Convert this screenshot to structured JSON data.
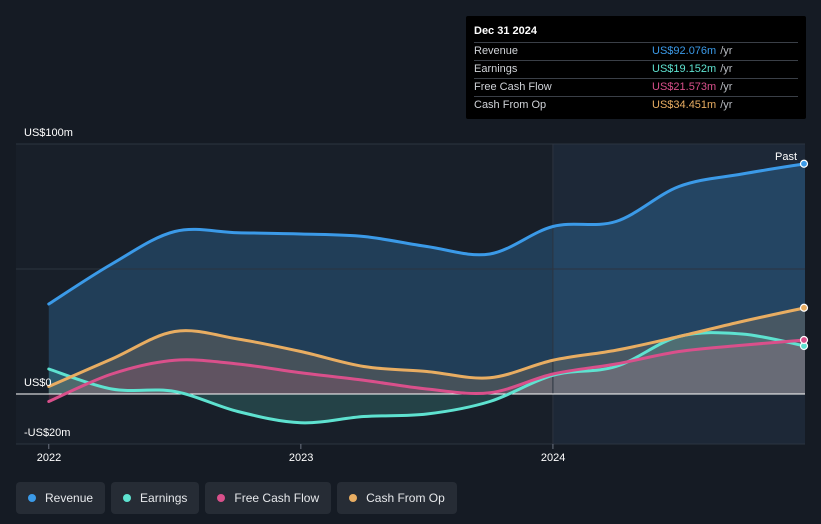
{
  "tooltip": {
    "date": "Dec 31 2024",
    "rows": [
      {
        "label": "Revenue",
        "value": "US$92.076m",
        "unit": "/yr",
        "color": "#3b9ae8"
      },
      {
        "label": "Earnings",
        "value": "US$19.152m",
        "unit": "/yr",
        "color": "#5ee2d0"
      },
      {
        "label": "Free Cash Flow",
        "value": "US$21.573m",
        "unit": "/yr",
        "color": "#d9508b"
      },
      {
        "label": "Cash From Op",
        "value": "US$34.451m",
        "unit": "/yr",
        "color": "#e8ad62"
      }
    ]
  },
  "legend": [
    {
      "label": "Revenue",
      "color": "#3b9ae8"
    },
    {
      "label": "Earnings",
      "color": "#5ee2d0"
    },
    {
      "label": "Free Cash Flow",
      "color": "#d9508b"
    },
    {
      "label": "Cash From Op",
      "color": "#e8ad62"
    }
  ],
  "chart_data": {
    "type": "area",
    "title": "",
    "xlabel": "",
    "ylabel": "",
    "y_tick_labels": [
      "US$100m",
      "US$0",
      "-US$20m"
    ],
    "x_tick_labels": [
      "2022",
      "2023",
      "2024"
    ],
    "x_ticks": [
      2022.0,
      2023.0,
      2024.0
    ],
    "ylim": [
      -20,
      100
    ],
    "xlim": [
      2021.87,
      2025.0
    ],
    "past_label": "Past",
    "past_start": 2024.0,
    "series": [
      {
        "name": "Revenue",
        "color": "#3b9ae8",
        "x": [
          2022.0,
          2022.25,
          2022.5,
          2022.75,
          2023.0,
          2023.25,
          2023.5,
          2023.75,
          2024.0,
          2024.25,
          2024.5,
          2024.75,
          2025.0
        ],
        "values": [
          36,
          52,
          65,
          64.5,
          64,
          63,
          59,
          56,
          67,
          69,
          83,
          88,
          92.1
        ]
      },
      {
        "name": "Earnings",
        "color": "#5ee2d0",
        "x": [
          2022.0,
          2022.25,
          2022.5,
          2022.75,
          2023.0,
          2023.25,
          2023.5,
          2023.75,
          2024.0,
          2024.25,
          2024.5,
          2024.75,
          2025.0
        ],
        "values": [
          10,
          2,
          1,
          -7,
          -11.5,
          -9,
          -8,
          -3,
          7.5,
          11,
          23,
          24,
          19.2
        ]
      },
      {
        "name": "Free Cash Flow",
        "color": "#d9508b",
        "x": [
          2022.0,
          2022.25,
          2022.5,
          2022.75,
          2023.0,
          2023.25,
          2023.5,
          2023.75,
          2024.0,
          2024.25,
          2024.5,
          2024.75,
          2025.0
        ],
        "values": [
          -3,
          8,
          13.5,
          12,
          8.5,
          5.5,
          2,
          0.5,
          8,
          12,
          17,
          19.5,
          21.6
        ]
      },
      {
        "name": "Cash From Op",
        "color": "#e8ad62",
        "x": [
          2022.0,
          2022.25,
          2022.5,
          2022.75,
          2023.0,
          2023.25,
          2023.5,
          2023.75,
          2024.0,
          2024.25,
          2024.5,
          2024.75,
          2025.0
        ],
        "values": [
          3,
          14,
          25,
          22,
          17,
          11,
          9,
          6.5,
          13.5,
          17.5,
          23,
          29,
          34.5
        ]
      }
    ]
  }
}
